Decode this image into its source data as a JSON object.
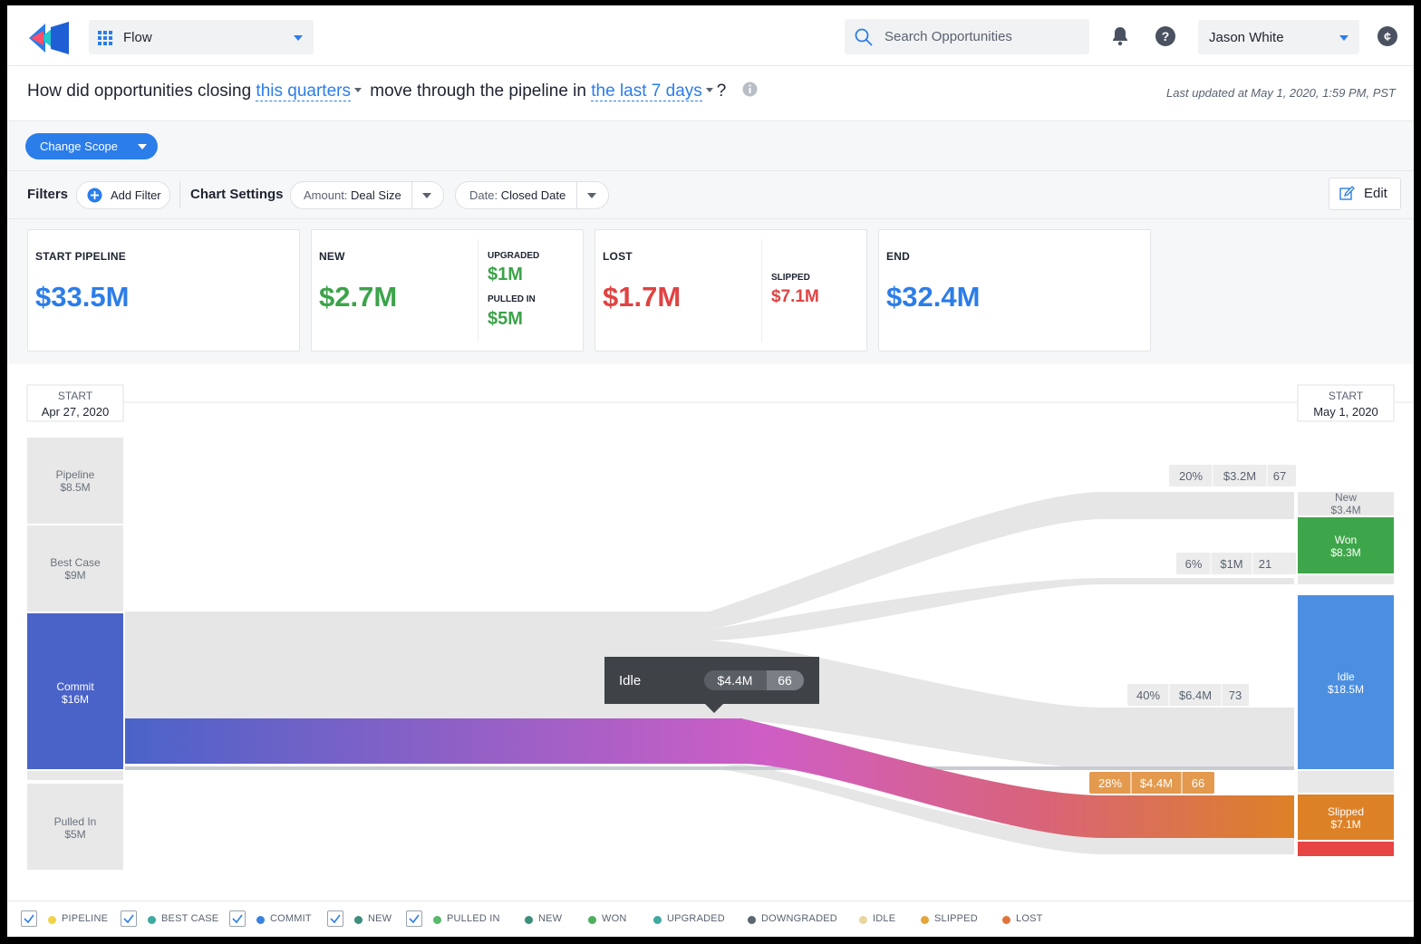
{
  "header": {
    "app_name": "Flow",
    "search_placeholder": "Search Opportunities",
    "user_name": "Jason White"
  },
  "question": {
    "prefix": "How did opportunities closing",
    "period": "this quarters",
    "middle": "move through the pipeline in",
    "window": "the last 7 days",
    "suffix": "?",
    "updated_label": "Last updated at",
    "updated_value": "May 1, 2020, 1:59 PM, PST"
  },
  "toolbar": {
    "change_scope": "Change Scope",
    "filters": "Filters",
    "add_filter": "Add Filter",
    "chart_settings": "Chart Settings",
    "amount_label": "Amount:",
    "amount_value": "Deal Size",
    "date_label": "Date:",
    "date_value": "Closed Date",
    "edit": "Edit"
  },
  "summary": {
    "start": {
      "title": "START PIPELINE",
      "value": "$33.5M"
    },
    "new": {
      "title": "NEW",
      "value": "$2.7M",
      "upgraded_title": "UPGRADED",
      "upgraded_value": "$1M",
      "pulled_title": "PULLED IN",
      "pulled_value": "$5M"
    },
    "lost": {
      "title": "LOST",
      "value": "$1.7M",
      "slipped_title": "SLIPPED",
      "slipped_value": "$7.1M"
    },
    "end": {
      "title": "END",
      "value": "$32.4M"
    }
  },
  "colors": {
    "blue": "#2b7de9",
    "green": "#3ca34a",
    "red": "#e04343",
    "commit": "#4a63c8",
    "won": "#3ea64a",
    "idle": "#4c8fe0",
    "slipped": "#dd8126",
    "lost": "#e74444",
    "magenta": "#cf5ec5"
  },
  "flow": {
    "start_header": {
      "label": "START",
      "date": "Apr 27, 2020"
    },
    "end_header": {
      "label": "START",
      "date": "May 1, 2020"
    },
    "left_nodes": [
      {
        "name": "Pipeline",
        "value": "$8.5M"
      },
      {
        "name": "Best Case",
        "value": "$9M"
      },
      {
        "name": "Commit",
        "value": "$16M"
      },
      {
        "name": "Pulled In",
        "value": "$5M"
      }
    ],
    "right_nodes": [
      {
        "name": "New",
        "value": "$3.4M"
      },
      {
        "name": "Won",
        "value": "$8.3M"
      },
      {
        "name": "Idle",
        "value": "$18.5M"
      },
      {
        "name": "Slipped",
        "value": "$7.1M"
      }
    ],
    "flow_labels": [
      {
        "pct": "20%",
        "amount": "$3.2M",
        "count": "67"
      },
      {
        "pct": "6%",
        "amount": "$1M",
        "count": "21"
      },
      {
        "pct": "40%",
        "amount": "$6.4M",
        "count": "73"
      },
      {
        "pct": "28%",
        "amount": "$4.4M",
        "count": "66"
      }
    ],
    "tooltip": {
      "label": "Idle",
      "amount": "$4.4M",
      "count": "66"
    }
  },
  "legend": [
    {
      "label": "PIPELINE",
      "checked": true,
      "color": "#f2d34a"
    },
    {
      "label": "BEST CASE",
      "checked": true,
      "color": "#3fa9a0"
    },
    {
      "label": "COMMIT",
      "checked": true,
      "color": "#3b82e0"
    },
    {
      "label": "NEW",
      "checked": true,
      "color": "#3d8e7a"
    },
    {
      "label": "PULLED IN",
      "checked": true,
      "color": "#58b96a"
    },
    {
      "label": "NEW",
      "checked": false,
      "color": "#3d8e7a"
    },
    {
      "label": "WON",
      "checked": false,
      "color": "#4fae5e"
    },
    {
      "label": "UPGRADED",
      "checked": false,
      "color": "#3fa9a0"
    },
    {
      "label": "DOWNGRADED",
      "checked": false,
      "color": "#5d6472"
    },
    {
      "label": "IDLE",
      "checked": false,
      "color": "#e8d6a0"
    },
    {
      "label": "SLIPPED",
      "checked": false,
      "color": "#e4a63b"
    },
    {
      "label": "LOST",
      "checked": false,
      "color": "#e0733a"
    }
  ]
}
